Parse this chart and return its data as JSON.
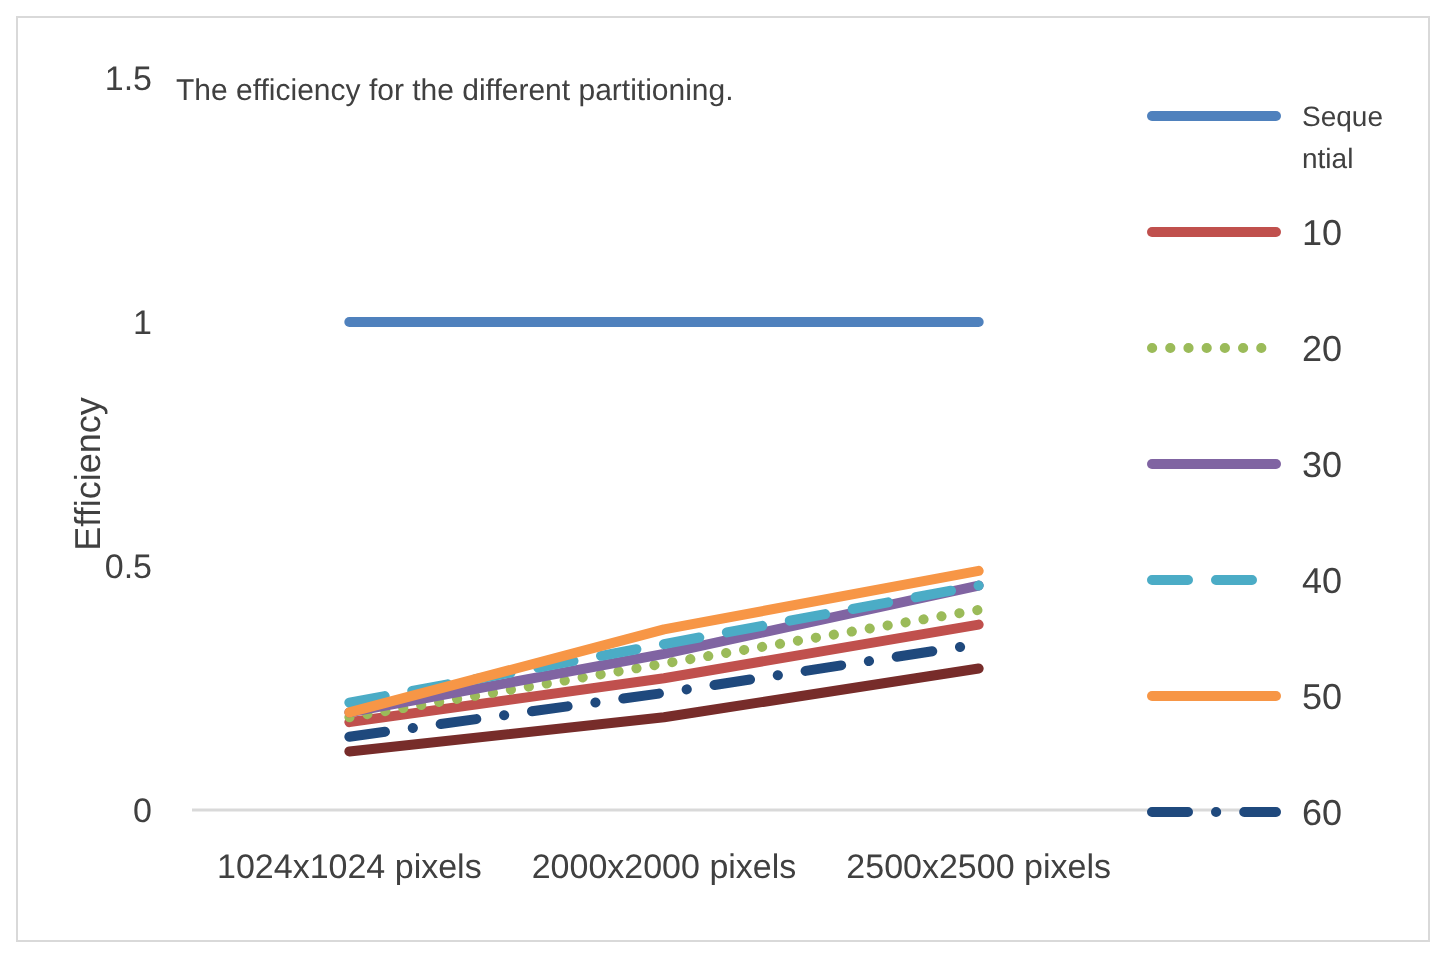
{
  "chart_data": {
    "type": "line",
    "title": "The  efficiency for the different  partitioning.",
    "ylabel": "Efficiency",
    "categories": [
      "1024x1024 pixels",
      "2000x2000 pixels",
      "2500x2500 pixels"
    ],
    "ylim": [
      0,
      1.5
    ],
    "yticks": [
      0,
      0.5,
      1,
      1.5
    ],
    "grid": false,
    "legend": "right",
    "marker": "none",
    "series": [
      {
        "name": "Sequential",
        "color": "#4f81bd",
        "line_style": "solid",
        "values": [
          1,
          1,
          1
        ]
      },
      {
        "name": "10",
        "color": "#c0504d",
        "line_style": "solid",
        "values": [
          0.18,
          0.27,
          0.38
        ]
      },
      {
        "name": "20",
        "color": "#9bbb59",
        "line_style": "dotted",
        "values": [
          0.19,
          0.3,
          0.41
        ]
      },
      {
        "name": "30",
        "color": "#8064a2",
        "line_style": "solid",
        "values": [
          0.2,
          0.32,
          0.46
        ]
      },
      {
        "name": "40",
        "color": "#4bacc6",
        "line_style": "dashed",
        "values": [
          0.22,
          0.34,
          0.46
        ]
      },
      {
        "name": "50",
        "color": "#f79646",
        "line_style": "solid",
        "values": [
          0.2,
          0.37,
          0.49
        ]
      },
      {
        "name": "60",
        "color": "#1f497d",
        "line_style": "dashdot",
        "values": [
          0.15,
          0.24,
          0.34
        ]
      },
      {
        "color": "#772c2a",
        "line_style": "solid",
        "values": [
          0.12,
          0.19,
          0.29
        ]
      }
    ]
  }
}
